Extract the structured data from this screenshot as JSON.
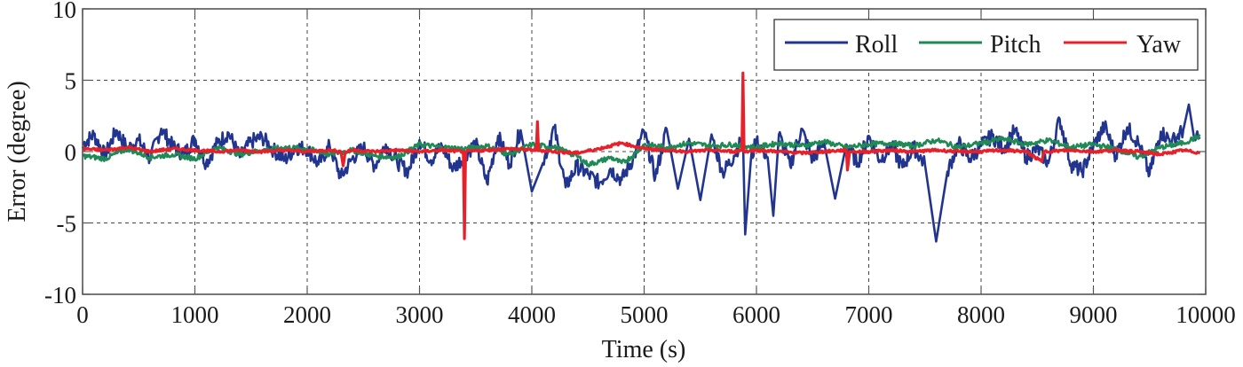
{
  "chart_data": {
    "type": "line",
    "title": "",
    "xlabel": "Time (s)",
    "ylabel": "Error (degree)",
    "xlim": [
      0,
      10000
    ],
    "ylim": [
      -10,
      10
    ],
    "grid": true,
    "legend_position": "upper right",
    "xticks": [
      0,
      1000,
      2000,
      3000,
      4000,
      5000,
      6000,
      7000,
      8000,
      9000,
      10000
    ],
    "yticks": [
      -10,
      -5,
      0,
      5,
      10
    ],
    "xtick_labels": [
      "0",
      "1000",
      "2000",
      "3000",
      "4000",
      "5000",
      "6000",
      "7000",
      "8000",
      "9000",
      "10000"
    ],
    "ytick_labels": [
      "-10",
      "-5",
      "0",
      "5",
      "10"
    ],
    "series": [
      {
        "name": "Roll",
        "color": "#22358e",
        "x": [
          0,
          100,
          200,
          300,
          400,
          500,
          600,
          700,
          800,
          900,
          1000,
          1100,
          1200,
          1300,
          1400,
          1500,
          1600,
          1700,
          1800,
          1900,
          2000,
          2100,
          2200,
          2300,
          2400,
          2500,
          2600,
          2700,
          2800,
          2900,
          3000,
          3100,
          3200,
          3300,
          3400,
          3500,
          3600,
          3700,
          3800,
          3900,
          4000,
          4100,
          4200,
          4300,
          4400,
          4500,
          4600,
          4700,
          4800,
          4900,
          5000,
          5100,
          5200,
          5300,
          5400,
          5500,
          5600,
          5700,
          5800,
          5880,
          5900,
          5950,
          6000,
          6100,
          6150,
          6200,
          6300,
          6400,
          6500,
          6600,
          6700,
          6800,
          6900,
          7000,
          7100,
          7200,
          7300,
          7400,
          7500,
          7600,
          7700,
          7800,
          7900,
          8000,
          8100,
          8200,
          8300,
          8400,
          8500,
          8600,
          8700,
          8800,
          8900,
          9000,
          9100,
          9200,
          9300,
          9400,
          9500,
          9600,
          9700,
          9800,
          9850,
          9900,
          9950
        ],
        "y": [
          0.5,
          1.2,
          -0.3,
          1.5,
          0.2,
          0.8,
          -0.5,
          1.6,
          0.4,
          -0.2,
          0.9,
          -0.8,
          0.6,
          1.3,
          -0.4,
          0.7,
          1.0,
          0.1,
          -0.6,
          0.3,
          0.2,
          -0.9,
          0.4,
          -1.8,
          -0.5,
          0.3,
          -1.0,
          0.5,
          -0.7,
          -1.4,
          0.8,
          -0.6,
          0.4,
          -1.2,
          -0.3,
          0.6,
          -2.2,
          1.1,
          -0.9,
          1.5,
          -2.8,
          -0.8,
          1.7,
          -2.5,
          -1.0,
          -1.6,
          -2.2,
          -1.2,
          -2.0,
          -0.5,
          1.4,
          -1.8,
          1.6,
          -2.6,
          0.9,
          -3.4,
          1.2,
          -1.5,
          -0.3,
          1.0,
          -5.8,
          -0.6,
          0.8,
          -0.4,
          -4.5,
          1.2,
          -1.0,
          1.6,
          -0.6,
          0.7,
          -3.3,
          0.5,
          -0.8,
          1.1,
          -0.6,
          0.4,
          -1.1,
          0.3,
          -0.9,
          -6.3,
          -1.4,
          0.6,
          -0.5,
          0.4,
          1.1,
          0.2,
          1.5,
          -0.4,
          0.2,
          -0.8,
          2.3,
          -0.9,
          -1.4,
          0.4,
          1.8,
          -0.3,
          1.7,
          0.6,
          -1.6,
          1.4,
          0.7,
          1.5,
          3.3,
          0.8,
          1.0
        ]
      },
      {
        "name": "Pitch",
        "color": "#1f8a55",
        "x": [
          0,
          200,
          400,
          600,
          800,
          1000,
          1200,
          1400,
          1600,
          1800,
          2000,
          2200,
          2400,
          2600,
          2800,
          3000,
          3200,
          3400,
          3600,
          3800,
          4000,
          4200,
          4400,
          4500,
          4600,
          4700,
          4800,
          4900,
          5000,
          5200,
          5400,
          5600,
          5800,
          6000,
          6200,
          6400,
          6600,
          6800,
          7000,
          7200,
          7400,
          7600,
          7800,
          8000,
          8200,
          8400,
          8600,
          8800,
          9000,
          9200,
          9400,
          9600,
          9800,
          9950
        ],
        "y": [
          -0.3,
          -0.5,
          0.2,
          -0.4,
          -0.2,
          -0.5,
          0.3,
          -0.2,
          0.1,
          0.3,
          0.2,
          -0.2,
          0.1,
          -0.3,
          -0.4,
          0.5,
          0.3,
          0.2,
          0.4,
          -0.2,
          0.5,
          0.3,
          -0.3,
          -0.9,
          -0.7,
          -0.4,
          -0.8,
          -0.3,
          0.5,
          0.3,
          0.6,
          0.4,
          0.5,
          0.3,
          0.6,
          0.4,
          0.7,
          0.3,
          0.5,
          0.6,
          0.4,
          0.8,
          0.3,
          0.6,
          0.9,
          0.5,
          0.8,
          0.3,
          0.5,
          0.2,
          -0.4,
          0.3,
          0.6,
          1.1
        ]
      },
      {
        "name": "Yaw",
        "color": "#e8202a",
        "x": [
          0,
          200,
          400,
          600,
          800,
          1000,
          1200,
          1400,
          1600,
          1800,
          2000,
          2200,
          2300,
          2320,
          2340,
          2400,
          2600,
          2800,
          3000,
          3200,
          3390,
          3400,
          3410,
          3600,
          3800,
          4040,
          4050,
          4060,
          4200,
          4400,
          4600,
          4700,
          4800,
          4900,
          5000,
          5200,
          5400,
          5600,
          5800,
          5870,
          5880,
          5890,
          6000,
          6200,
          6400,
          6600,
          6800,
          6810,
          6830,
          7000,
          7200,
          7400,
          7600,
          7800,
          8000,
          8200,
          8400,
          8540,
          8560,
          8800,
          9000,
          9200,
          9400,
          9600,
          9800,
          9950
        ],
        "y": [
          0.2,
          0.1,
          0.3,
          0.0,
          0.2,
          0.1,
          0.0,
          0.1,
          0.0,
          0.1,
          0.0,
          0.1,
          0.0,
          -1.0,
          0.0,
          0.1,
          0.0,
          0.1,
          0.0,
          0.1,
          0.0,
          -6.1,
          0.0,
          0.1,
          0.2,
          0.1,
          2.1,
          0.1,
          0.0,
          -0.1,
          0.2,
          0.4,
          0.6,
          0.4,
          0.2,
          0.1,
          0.0,
          0.1,
          0.0,
          0.1,
          5.5,
          0.0,
          0.1,
          0.0,
          -0.1,
          0.0,
          0.1,
          -1.3,
          0.0,
          0.0,
          0.1,
          0.0,
          0.1,
          0.0,
          0.0,
          0.1,
          0.0,
          -0.7,
          0.0,
          0.1,
          0.0,
          0.1,
          0.0,
          -0.2,
          0.1,
          -0.1
        ]
      }
    ]
  },
  "legend": {
    "items": [
      {
        "label": "Roll",
        "color": "#22358e"
      },
      {
        "label": "Pitch",
        "color": "#1f8a55"
      },
      {
        "label": "Yaw",
        "color": "#e8202a"
      }
    ]
  },
  "axes": {
    "xlabel": "Time (s)",
    "ylabel": "Error (degree)"
  }
}
